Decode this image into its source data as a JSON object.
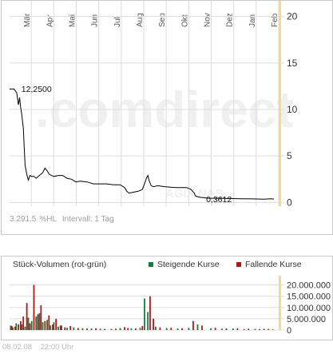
{
  "price_chart": {
    "watermark": ".comdirect",
    "symbol_watermark": "AGIX NAS",
    "stats": {
      "change": "3.291,5",
      "change_unit": "%HL",
      "interval": "Intervall: 1 Tag"
    }
  },
  "volume_chart": {
    "title": "Stück-Volumen (rot-grün)",
    "legend": {
      "up_label": "Steigende Kurse",
      "down_label": "Fallende Kurse"
    }
  },
  "footer": {
    "date": "08.02.08",
    "time": "22:00 Uhr"
  },
  "colors": {
    "line": "#000000",
    "grid": "#dcdcdc",
    "highlight": "#f6d98c",
    "up": "#1a7a3c",
    "down": "#b01818",
    "watermark": "#f0f0f0"
  },
  "chart_data": [
    {
      "type": "line",
      "x_ticks": [
        "Mär",
        "Apr",
        "Mai",
        "Jun",
        "Jul",
        "Aug",
        "Sep",
        "Okt",
        "Nov",
        "Dez",
        "Jan",
        "Feb"
      ],
      "y_ticks": [
        0,
        5,
        10,
        15,
        20
      ],
      "ylim": [
        -0.4,
        21
      ],
      "xlim": [
        0,
        12.2
      ],
      "annotations": [
        {
          "x": 0.1,
          "y": 12.25,
          "label": "12,2500"
        },
        {
          "x": 11.95,
          "y": 0.3612,
          "label": "0,3612"
        }
      ],
      "series": [
        {
          "x": [
            0.0,
            0.2,
            0.32,
            0.4,
            0.45,
            0.5,
            0.55,
            0.62,
            0.7,
            0.78,
            0.85,
            0.92,
            1.0,
            1.1,
            1.2,
            1.3,
            1.4,
            1.5,
            1.6,
            1.7,
            1.8,
            1.9,
            2.0,
            2.2,
            2.4,
            2.6,
            2.8,
            3.0,
            3.2,
            3.5,
            3.8,
            4.1,
            4.4,
            4.7,
            5.0,
            5.2,
            5.3,
            5.4,
            5.6,
            5.8,
            6.0,
            6.1,
            6.2,
            6.25,
            6.3,
            6.4,
            6.5,
            6.7,
            7.0,
            7.5,
            8.0,
            8.2,
            8.35,
            8.4,
            8.6,
            8.8,
            9.0,
            9.5,
            10.0,
            10.5,
            11.0,
            11.5,
            11.8,
            11.95
          ],
          "values": [
            12.2,
            12.2,
            11.8,
            10.5,
            11.3,
            10.2,
            9.5,
            8.0,
            4.0,
            3.0,
            2.4,
            2.9,
            2.8,
            2.8,
            2.6,
            2.8,
            3.0,
            3.2,
            3.7,
            3.4,
            3.0,
            2.9,
            2.8,
            2.9,
            2.9,
            2.6,
            2.5,
            2.2,
            2.3,
            2.2,
            2.0,
            2.0,
            2.0,
            1.9,
            1.9,
            1.6,
            1.2,
            1.0,
            1.1,
            1.2,
            1.4,
            2.0,
            2.7,
            2.9,
            2.4,
            1.8,
            1.7,
            1.8,
            1.7,
            1.6,
            1.6,
            1.4,
            1.0,
            0.7,
            0.55,
            0.5,
            0.45,
            0.45,
            0.42,
            0.4,
            0.38,
            0.36,
            0.4,
            0.3612
          ]
        }
      ]
    },
    {
      "type": "bar",
      "y_ticks": [
        0,
        5000000,
        10000000,
        15000000,
        20000000
      ],
      "y_tick_labels": [
        "0",
        "5.000.000",
        "10.000.000",
        "15.000.000",
        "20.000.000"
      ],
      "ylim": [
        0,
        22000000
      ],
      "xlim": [
        0,
        12.2
      ],
      "series": [
        {
          "name": "Steigende Kurse",
          "x": [
            0.05,
            0.15,
            0.3,
            0.55,
            0.7,
            0.85,
            1.0,
            1.2,
            1.35,
            1.5,
            1.7,
            1.85,
            2.0,
            2.2,
            2.35,
            2.6,
            2.9,
            3.3,
            3.7,
            4.1,
            4.6,
            5.0,
            5.5,
            5.9,
            6.1,
            6.25,
            6.6,
            7.1,
            7.6,
            8.1,
            8.5,
            9.1,
            9.6,
            10.1,
            10.6,
            11.1,
            11.5,
            11.9
          ],
          "values": [
            2000000,
            1200000,
            3000000,
            2500000,
            1500000,
            5500000,
            4000000,
            6000000,
            7500000,
            3500000,
            4500000,
            2000000,
            3500000,
            1500000,
            2000000,
            1000000,
            1200000,
            800000,
            700000,
            600000,
            500000,
            900000,
            700000,
            1000000,
            14000000,
            8000000,
            1500000,
            900000,
            700000,
            1000000,
            2500000,
            800000,
            600000,
            700000,
            400000,
            500000,
            600000,
            300000
          ]
        },
        {
          "name": "Fallende Kurse",
          "x": [
            0.1,
            0.25,
            0.4,
            0.5,
            0.62,
            0.78,
            0.92,
            1.1,
            1.28,
            1.42,
            1.6,
            1.78,
            1.95,
            2.1,
            2.3,
            2.5,
            2.75,
            3.1,
            3.5,
            3.9,
            4.3,
            4.8,
            5.2,
            5.35,
            5.7,
            6.0,
            6.35,
            6.5,
            6.8,
            7.3,
            7.8,
            8.3,
            8.7,
            9.3,
            9.8,
            10.3,
            10.8,
            11.3,
            11.7
          ],
          "values": [
            1800000,
            1500000,
            2500000,
            4000000,
            6000000,
            12000000,
            3000000,
            20000000,
            7000000,
            11000000,
            4000000,
            6500000,
            2500000,
            5000000,
            2000000,
            1200000,
            1800000,
            900000,
            700000,
            800000,
            500000,
            600000,
            1300000,
            900000,
            700000,
            1800000,
            15000000,
            5000000,
            1200000,
            1000000,
            800000,
            4000000,
            2000000,
            1000000,
            700000,
            800000,
            600000,
            400000,
            500000
          ]
        }
      ]
    }
  ]
}
